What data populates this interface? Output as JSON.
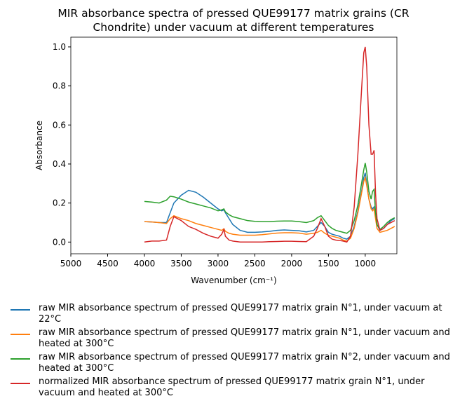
{
  "chart_data": {
    "type": "line",
    "title": "MIR absorbance spectra of pressed QUE99177 matrix grains (CR Chondrite) under vacuum at different temperatures",
    "x_label": "Wavenumber (cm⁻¹)",
    "y_label": "Absorbance",
    "xlim": [
      5000,
      570
    ],
    "ylim": [
      -0.06,
      1.05
    ],
    "xticks": [
      5000,
      4500,
      4000,
      3500,
      3000,
      2500,
      2000,
      1500,
      1000
    ],
    "yticks": [
      {
        "value": 0,
        "label": "0.0"
      },
      {
        "value": 0.2,
        "label": "0.2"
      },
      {
        "value": 0.4,
        "label": "0.4"
      },
      {
        "value": 0.6,
        "label": "0.6"
      },
      {
        "value": 0.8,
        "label": "0.8"
      },
      {
        "value": 1,
        "label": "1.0"
      }
    ],
    "x": [
      4000,
      3900,
      3800,
      3700,
      3650,
      3600,
      3500,
      3400,
      3300,
      3200,
      3100,
      3000,
      2950,
      2920,
      2900,
      2850,
      2800,
      2700,
      2600,
      2500,
      2400,
      2300,
      2200,
      2100,
      2000,
      1900,
      1800,
      1700,
      1650,
      1600,
      1550,
      1500,
      1450,
      1400,
      1350,
      1300,
      1250,
      1200,
      1150,
      1100,
      1050,
      1020,
      1000,
      980,
      950,
      920,
      900,
      880,
      860,
      840,
      800,
      750,
      700,
      650,
      600
    ],
    "series": [
      {
        "name": "raw MIR absorbance spectrum of pressed QUE99177 matrix grain N°1, under vacuum at 22°C",
        "color": "#1f77b4",
        "values": [
          0.105,
          0.103,
          0.1,
          0.1,
          0.15,
          0.2,
          0.24,
          0.265,
          0.255,
          0.23,
          0.2,
          0.17,
          0.16,
          0.165,
          0.15,
          0.12,
          0.09,
          0.06,
          0.05,
          0.05,
          0.052,
          0.055,
          0.06,
          0.062,
          0.06,
          0.058,
          0.052,
          0.06,
          0.08,
          0.1,
          0.08,
          0.05,
          0.04,
          0.035,
          0.03,
          0.02,
          0.015,
          0.03,
          0.08,
          0.16,
          0.26,
          0.33,
          0.355,
          0.3,
          0.22,
          0.18,
          0.17,
          0.18,
          0.14,
          0.09,
          0.06,
          0.07,
          0.09,
          0.11,
          0.12
        ]
      },
      {
        "name": "raw MIR absorbance spectrum of pressed QUE99177 matrix grain N°1, under vacuum and heated at 300°C",
        "color": "#ff7f0e",
        "values": [
          0.105,
          0.103,
          0.1,
          0.095,
          0.12,
          0.135,
          0.12,
          0.11,
          0.095,
          0.085,
          0.075,
          0.065,
          0.06,
          0.068,
          0.055,
          0.045,
          0.04,
          0.035,
          0.035,
          0.035,
          0.038,
          0.042,
          0.046,
          0.048,
          0.048,
          0.046,
          0.04,
          0.045,
          0.05,
          0.06,
          0.045,
          0.035,
          0.03,
          0.025,
          0.02,
          0.01,
          0.005,
          0.02,
          0.07,
          0.15,
          0.25,
          0.31,
          0.33,
          0.29,
          0.22,
          0.17,
          0.16,
          0.17,
          0.12,
          0.07,
          0.05,
          0.055,
          0.06,
          0.07,
          0.08
        ]
      },
      {
        "name": "raw MIR absorbance spectrum of pressed QUE99177 matrix grain N°2, under vacuum and heated at 300°C",
        "color": "#2ca02c",
        "values": [
          0.208,
          0.205,
          0.2,
          0.215,
          0.235,
          0.232,
          0.22,
          0.205,
          0.195,
          0.185,
          0.175,
          0.16,
          0.165,
          0.17,
          0.155,
          0.14,
          0.13,
          0.12,
          0.11,
          0.106,
          0.105,
          0.105,
          0.107,
          0.108,
          0.108,
          0.105,
          0.1,
          0.11,
          0.125,
          0.135,
          0.11,
          0.085,
          0.07,
          0.06,
          0.055,
          0.05,
          0.045,
          0.06,
          0.11,
          0.19,
          0.3,
          0.37,
          0.405,
          0.36,
          0.26,
          0.22,
          0.26,
          0.27,
          0.15,
          0.09,
          0.065,
          0.08,
          0.1,
          0.115,
          0.125
        ]
      },
      {
        "name": "normalized MIR absorbance spectrum of pressed QUE99177 matrix grain N°1, under vacuum and heated at 300°C",
        "color": "#d62728",
        "values": [
          0,
          0.005,
          0.005,
          0.01,
          0.08,
          0.13,
          0.11,
          0.08,
          0.065,
          0.045,
          0.03,
          0.02,
          0.04,
          0.065,
          0.03,
          0.01,
          0.005,
          0,
          0,
          0,
          0,
          0.002,
          0.003,
          0.004,
          0.004,
          0.003,
          0.002,
          0.03,
          0.07,
          0.12,
          0.08,
          0.03,
          0.015,
          0.01,
          0.008,
          0.005,
          0,
          0.03,
          0.18,
          0.45,
          0.78,
          0.97,
          1,
          0.9,
          0.6,
          0.45,
          0.45,
          0.47,
          0.25,
          0.12,
          0.06,
          0.07,
          0.09,
          0.1,
          0.11
        ]
      }
    ]
  }
}
